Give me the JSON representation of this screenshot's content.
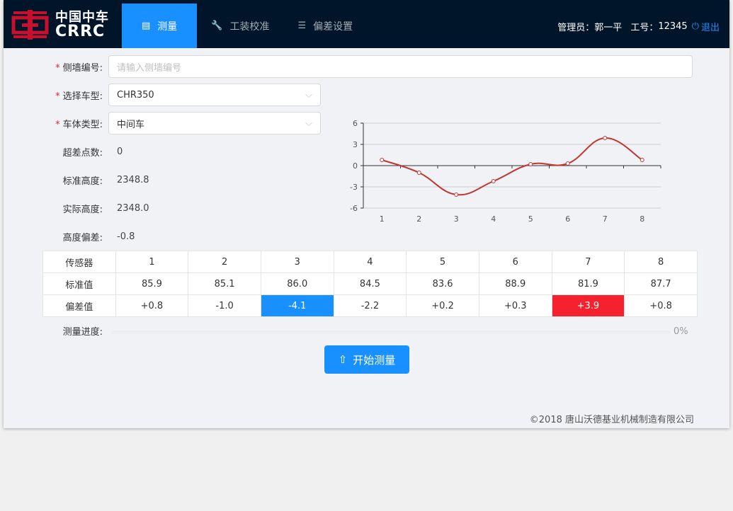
{
  "header": {
    "logo_cn": "中国中车",
    "logo_en": "CRRC",
    "nav": [
      {
        "label": "测量",
        "icon": "list-icon",
        "active": true
      },
      {
        "label": "工装校准",
        "icon": "wrench-icon"
      },
      {
        "label": "偏差设置",
        "icon": "bars-icon"
      }
    ],
    "admin_label": "管理员：",
    "admin_name": "郭一平",
    "id_label": "工号：",
    "id_value": "12345",
    "logout": "退出"
  },
  "form": {
    "wall_label": "侧墙编号:",
    "wall_placeholder": "请输入侧墙编号",
    "wall_value": "",
    "model_label": "选择车型:",
    "model_value": "CHR350",
    "body_label": "车体类型:",
    "body_value": "中间车",
    "over_label": "超差点数:",
    "over_value": "0",
    "std_label": "标准高度:",
    "std_value": "2348.8",
    "act_label": "实际高度:",
    "act_value": "2348.0",
    "dev_label": "高度偏差:",
    "dev_value": "-0.8"
  },
  "table": {
    "headers": [
      "传感器",
      "1",
      "2",
      "3",
      "4",
      "5",
      "6",
      "7",
      "8"
    ],
    "std": [
      "标准值",
      "85.9",
      "85.1",
      "86.0",
      "84.5",
      "83.6",
      "88.9",
      "81.9",
      "87.7"
    ],
    "dev": [
      "偏差值",
      "+0.8",
      "-1.0",
      "-4.1",
      "-2.2",
      "+0.2",
      "+0.3",
      "+3.9",
      "+0.8"
    ]
  },
  "progress": {
    "label": "测量进度:",
    "value": 0,
    "text": "0%"
  },
  "start_button": "开始测量",
  "footer": "©2018 唐山沃德基业机械制造有限公司",
  "colors": {
    "header": "#001529",
    "accent": "#1890ff",
    "danger": "#f5222d",
    "line": "#c23531"
  },
  "chart_data": {
    "type": "line",
    "categories": [
      "1",
      "2",
      "3",
      "4",
      "5",
      "6",
      "7",
      "8"
    ],
    "values": [
      0.8,
      -1.0,
      -4.1,
      -2.2,
      0.2,
      0.3,
      3.9,
      0.8
    ],
    "ylim": [
      -6,
      6
    ],
    "yticks": [
      "6",
      "3",
      "0",
      "-3",
      "-6"
    ],
    "grid": true,
    "smooth": true
  }
}
